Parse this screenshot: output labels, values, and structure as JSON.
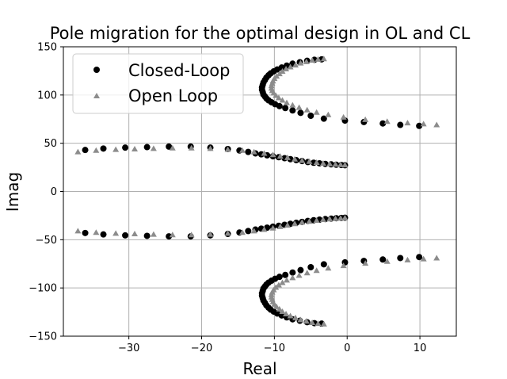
{
  "chart_data": {
    "type": "scatter",
    "title": "Pole migration for the optimal design in OL and CL",
    "xlabel": "Real",
    "ylabel": "Imag",
    "xlim": [
      -39,
      15
    ],
    "ylim": [
      -150,
      150
    ],
    "xticks": [
      -30,
      -20,
      -10,
      0,
      10
    ],
    "yticks": [
      -150,
      -100,
      -50,
      0,
      50,
      100,
      150
    ],
    "xtick_labels": [
      "−30",
      "−20",
      "−10",
      "0",
      "10"
    ],
    "ytick_labels": [
      "−150",
      "−100",
      "−50",
      "0",
      "50",
      "100",
      "150"
    ],
    "grid": true,
    "legend_position": "top-left",
    "series": [
      {
        "name": "Closed-Loop",
        "marker": "circle",
        "color": "#000000",
        "x": [
          -36,
          -33.5,
          -30.5,
          -27.5,
          -24.5,
          -21.5,
          -18.8,
          -16.4,
          -14.8,
          -13.6,
          -12.6,
          -11.8,
          -11.0,
          -10.2,
          -9.4,
          -8.6,
          -7.8,
          -7.0,
          -6.2,
          -5.4,
          -4.6,
          -3.8,
          -3.0,
          -2.2,
          -1.5,
          -0.8,
          -0.3,
          -36,
          -33.5,
          -30.5,
          -27.5,
          -24.5,
          -21.5,
          -18.8,
          -16.4,
          -14.8,
          -13.6,
          -12.6,
          -11.8,
          -11.0,
          -10.2,
          -9.4,
          -8.6,
          -7.8,
          -7.0,
          -6.2,
          -5.4,
          -4.6,
          -3.8,
          -3.0,
          -2.2,
          -1.5,
          -0.8,
          -0.3,
          -3.5,
          -4.5,
          -5.5,
          -6.5,
          -7.5,
          -8.3,
          -9.0,
          -9.6,
          -10.1,
          -10.5,
          -10.8,
          -11.1,
          -11.3,
          -11.5,
          -11.6,
          -11.7,
          -11.7,
          -11.6,
          -11.5,
          -11.3,
          -11.1,
          -10.8,
          -10.4,
          -9.9,
          -9.3,
          -8.5,
          -7.5,
          -6.4,
          -5.0,
          -3.2,
          -0.3,
          2.3,
          4.9,
          7.3,
          9.9,
          -3.5,
          -4.5,
          -5.5,
          -6.5,
          -7.5,
          -8.3,
          -9.0,
          -9.6,
          -10.1,
          -10.5,
          -10.8,
          -11.1,
          -11.3,
          -11.5,
          -11.6,
          -11.7,
          -11.7,
          -11.6,
          -11.5,
          -11.3,
          -11.1,
          -10.8,
          -10.4,
          -9.9,
          -9.3,
          -8.5,
          -7.5,
          -6.4,
          -5.0,
          -3.2,
          -0.3,
          2.3,
          4.9,
          7.3,
          9.9
        ],
        "y": [
          43,
          44.5,
          45.5,
          46,
          46.5,
          46.5,
          45.5,
          44,
          42.5,
          41,
          39.5,
          38.5,
          37.5,
          36.5,
          35.5,
          34.5,
          33.5,
          32.5,
          31.5,
          30.5,
          29.8,
          29.2,
          28.6,
          28.1,
          27.7,
          27.4,
          27.2,
          -43,
          -44.5,
          -45.5,
          -46,
          -46.5,
          -46.5,
          -45.5,
          -44,
          -42.5,
          -41,
          -39.5,
          -38.5,
          -37.5,
          -36.5,
          -35.5,
          -34.5,
          -33.5,
          -32.5,
          -31.5,
          -30.5,
          -29.8,
          -29.2,
          -28.6,
          -28.1,
          -27.7,
          -27.4,
          -27.2,
          137,
          136.5,
          135.5,
          134,
          132.5,
          130.5,
          128.5,
          126.5,
          124.5,
          122.5,
          120.5,
          118,
          115.5,
          113,
          110.5,
          108,
          105.5,
          103,
          100.5,
          98.5,
          96.5,
          94.5,
          92.5,
          90.5,
          88.5,
          86.5,
          84,
          81.5,
          78.5,
          75.5,
          73.5,
          72,
          70.5,
          69,
          68,
          -137,
          -136.5,
          -135.5,
          -134,
          -132.5,
          -130.5,
          -128.5,
          -126.5,
          -124.5,
          -122.5,
          -120.5,
          -118,
          -115.5,
          -113,
          -110.5,
          -108,
          -105.5,
          -103,
          -100.5,
          -98.5,
          -96.5,
          -94.5,
          -92.5,
          -90.5,
          -88.5,
          -86.5,
          -84,
          -81.5,
          -78.5,
          -75.5,
          -73.5,
          -72,
          -70.5,
          -69,
          -68
        ]
      },
      {
        "name": "Open Loop",
        "marker": "triangle",
        "color": "#8c8c8c",
        "x": [
          -37,
          -34.5,
          -31.8,
          -29.2,
          -26.6,
          -24.0,
          -21.4,
          -18.8,
          -16.4,
          -14.4,
          -12.8,
          -11.4,
          -10.2,
          -9.2,
          -8.2,
          -7.2,
          -6.2,
          -5.2,
          -4.2,
          -3.3,
          -2.4,
          -1.6,
          -0.9,
          -0.3,
          -37,
          -34.5,
          -31.8,
          -29.2,
          -26.6,
          -24.0,
          -21.4,
          -18.8,
          -16.4,
          -14.4,
          -12.8,
          -11.4,
          -10.2,
          -9.2,
          -8.2,
          -7.2,
          -6.2,
          -5.2,
          -4.2,
          -3.3,
          -2.4,
          -1.6,
          -0.9,
          -0.3,
          -3.2,
          -4.0,
          -4.8,
          -5.6,
          -6.4,
          -7.1,
          -7.8,
          -8.4,
          -8.9,
          -9.3,
          -9.7,
          -10.0,
          -10.2,
          -10.3,
          -10.4,
          -10.4,
          -10.3,
          -10.1,
          -9.8,
          -9.4,
          -8.9,
          -8.3,
          -7.5,
          -6.6,
          -5.5,
          -4.2,
          -2.6,
          -0.5,
          2.5,
          5.5,
          8.3,
          10.5,
          12.3,
          -3.2,
          -4.0,
          -4.8,
          -5.6,
          -6.4,
          -7.1,
          -7.8,
          -8.4,
          -8.9,
          -9.3,
          -9.7,
          -10.0,
          -10.2,
          -10.3,
          -10.4,
          -10.4,
          -10.3,
          -10.1,
          -9.8,
          -9.4,
          -8.9,
          -8.3,
          -7.5,
          -6.6,
          -5.5,
          -4.2,
          -2.6,
          -0.5,
          2.5,
          5.5,
          8.3,
          10.5,
          12.3
        ],
        "y": [
          41,
          42.5,
          43.5,
          44,
          44.5,
          45,
          45,
          44.5,
          43.5,
          42.5,
          41,
          39.5,
          38,
          36.5,
          35,
          33.5,
          32,
          31,
          30,
          29.2,
          28.6,
          28.1,
          27.7,
          27.4,
          -41,
          -42.5,
          -43.5,
          -44,
          -44.5,
          -45,
          -45,
          -44.5,
          -43.5,
          -42.5,
          -41,
          -39.5,
          -38,
          -36.5,
          -35,
          -33.5,
          -32,
          -31,
          -30,
          -29.2,
          -28.6,
          -28.1,
          -27.7,
          -27.4,
          137.5,
          137,
          136,
          134.5,
          133,
          131,
          129,
          127,
          124.5,
          122,
          119.5,
          117,
          114.5,
          112,
          109.5,
          107,
          104.5,
          102,
          99.5,
          97,
          94.5,
          92,
          89.5,
          87,
          84.5,
          82,
          79.5,
          77,
          74.5,
          72.5,
          71,
          70,
          69,
          -137.5,
          -137,
          -136,
          -134.5,
          -133,
          -131,
          -129,
          -127,
          -124.5,
          -122,
          -119.5,
          -117,
          -114.5,
          -112,
          -109.5,
          -107,
          -104.5,
          -102,
          -99.5,
          -97,
          -94.5,
          -92,
          -89.5,
          -87,
          -84.5,
          -82,
          -79.5,
          -77,
          -74.5,
          -72.5,
          -71,
          -70,
          -69
        ]
      }
    ]
  }
}
